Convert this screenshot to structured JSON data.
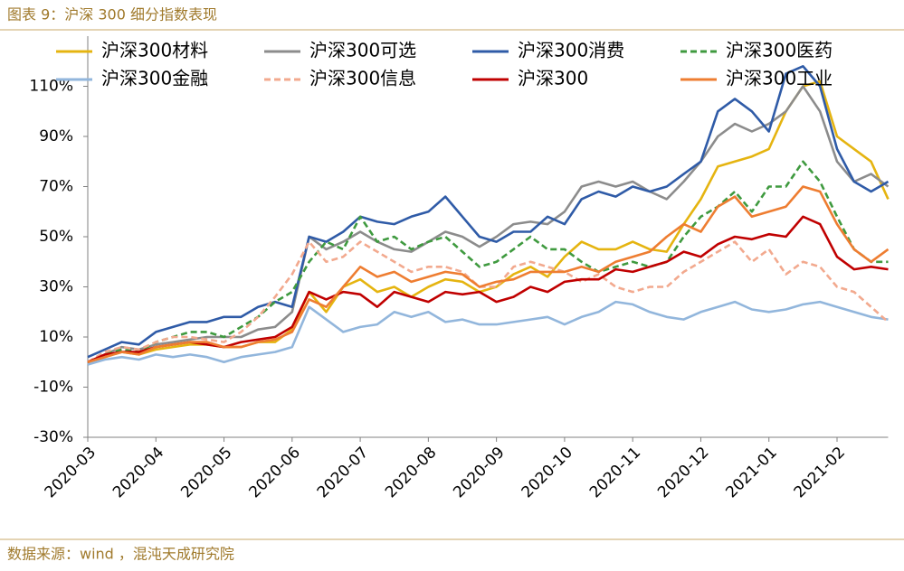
{
  "chart_data": {
    "type": "line",
    "title": "图表 9：沪深 300 细分指数表现",
    "source": "数据来源：wind ，混沌天成研究院",
    "categories": [
      "2020-03",
      null,
      null,
      null,
      "2020-04",
      null,
      null,
      null,
      "2020-05",
      null,
      null,
      null,
      "2020-06",
      null,
      null,
      null,
      "2020-07",
      null,
      null,
      null,
      "2020-08",
      null,
      null,
      null,
      "2020-09",
      null,
      null,
      null,
      "2020-10",
      null,
      null,
      null,
      "2020-11",
      null,
      null,
      null,
      "2020-12",
      null,
      null,
      null,
      "2021-01",
      null,
      null,
      null,
      "2021-02",
      null,
      null,
      null
    ],
    "ylim": [
      -30,
      130
    ],
    "yticks": [
      {
        "value": -30,
        "label": "-30%"
      },
      {
        "value": -10,
        "label": "-10%"
      },
      {
        "value": 10,
        "label": "10%"
      },
      {
        "value": 30,
        "label": "30%"
      },
      {
        "value": 50,
        "label": "50%"
      },
      {
        "value": 70,
        "label": "70%"
      },
      {
        "value": 90,
        "label": "90%"
      },
      {
        "value": 110,
        "label": "110%"
      }
    ],
    "series": [
      {
        "name": "沪深300材料",
        "color": "#e5b410",
        "dashed": false,
        "values": [
          0,
          2,
          4,
          3,
          5,
          6,
          7,
          7,
          6,
          6,
          8,
          8,
          13,
          28,
          20,
          30,
          33,
          28,
          30,
          26,
          30,
          33,
          32,
          28,
          30,
          35,
          38,
          34,
          42,
          48,
          45,
          45,
          48,
          45,
          44,
          55,
          65,
          78,
          80,
          82,
          85,
          100,
          110,
          112,
          90,
          85,
          80,
          65
        ]
      },
      {
        "name": "沪深300可选",
        "color": "#8c8c8c",
        "dashed": false,
        "values": [
          0,
          3,
          6,
          5,
          7,
          8,
          9,
          10,
          10,
          10,
          13,
          14,
          20,
          50,
          45,
          48,
          52,
          48,
          45,
          44,
          48,
          52,
          50,
          46,
          50,
          55,
          56,
          55,
          60,
          70,
          72,
          70,
          72,
          68,
          65,
          72,
          80,
          90,
          95,
          92,
          95,
          100,
          110,
          100,
          80,
          72,
          75,
          70
        ]
      },
      {
        "name": "沪深300消费",
        "color": "#2f5ba7",
        "dashed": false,
        "values": [
          2,
          5,
          8,
          7,
          12,
          14,
          16,
          16,
          18,
          18,
          22,
          24,
          22,
          50,
          48,
          52,
          58,
          56,
          55,
          58,
          60,
          66,
          58,
          50,
          48,
          52,
          52,
          58,
          55,
          65,
          68,
          66,
          70,
          68,
          70,
          75,
          80,
          100,
          105,
          100,
          92,
          115,
          118,
          110,
          85,
          72,
          68,
          72
        ]
      },
      {
        "name": "沪深300医药",
        "color": "#3f9a3f",
        "dashed": true,
        "values": [
          0,
          3,
          5,
          4,
          8,
          10,
          12,
          12,
          10,
          14,
          18,
          24,
          28,
          40,
          48,
          45,
          58,
          48,
          50,
          45,
          48,
          50,
          44,
          38,
          40,
          45,
          50,
          45,
          45,
          40,
          36,
          38,
          40,
          38,
          40,
          50,
          58,
          62,
          68,
          60,
          70,
          70,
          80,
          72,
          58,
          45,
          40,
          40
        ]
      },
      {
        "name": "沪深300金融",
        "color": "#92b6dc",
        "dashed": false,
        "values": [
          -1,
          1,
          2,
          1,
          3,
          2,
          3,
          2,
          0,
          2,
          3,
          4,
          6,
          22,
          17,
          12,
          14,
          15,
          20,
          18,
          20,
          16,
          17,
          15,
          15,
          16,
          17,
          18,
          15,
          18,
          20,
          24,
          23,
          20,
          18,
          17,
          20,
          22,
          24,
          21,
          20,
          21,
          23,
          24,
          22,
          20,
          18,
          17
        ]
      },
      {
        "name": "沪深300信息",
        "color": "#f2a98e",
        "dashed": true,
        "values": [
          0,
          4,
          6,
          5,
          8,
          10,
          10,
          9,
          8,
          12,
          18,
          26,
          35,
          48,
          40,
          42,
          48,
          44,
          40,
          36,
          38,
          38,
          36,
          30,
          30,
          38,
          40,
          38,
          36,
          32,
          35,
          30,
          28,
          30,
          30,
          36,
          40,
          44,
          48,
          40,
          45,
          35,
          40,
          38,
          30,
          28,
          22,
          16
        ]
      },
      {
        "name": "沪深300",
        "color": "#c00000",
        "dashed": false,
        "values": [
          0,
          3,
          4,
          4,
          6,
          7,
          8,
          7,
          6,
          8,
          9,
          10,
          14,
          28,
          25,
          28,
          27,
          22,
          28,
          26,
          24,
          28,
          27,
          28,
          24,
          26,
          30,
          28,
          32,
          33,
          33,
          37,
          36,
          38,
          40,
          44,
          42,
          47,
          50,
          49,
          51,
          50,
          58,
          55,
          42,
          37,
          38,
          37
        ]
      },
      {
        "name": "沪深300工业",
        "color": "#ee7d31",
        "dashed": false,
        "values": [
          0,
          2,
          4,
          3,
          6,
          7,
          8,
          8,
          6,
          6,
          8,
          9,
          12,
          25,
          22,
          30,
          38,
          34,
          36,
          32,
          34,
          36,
          35,
          30,
          32,
          33,
          36,
          36,
          36,
          38,
          36,
          40,
          42,
          44,
          50,
          55,
          52,
          62,
          66,
          58,
          60,
          62,
          70,
          68,
          55,
          45,
          40,
          45
        ]
      }
    ]
  }
}
